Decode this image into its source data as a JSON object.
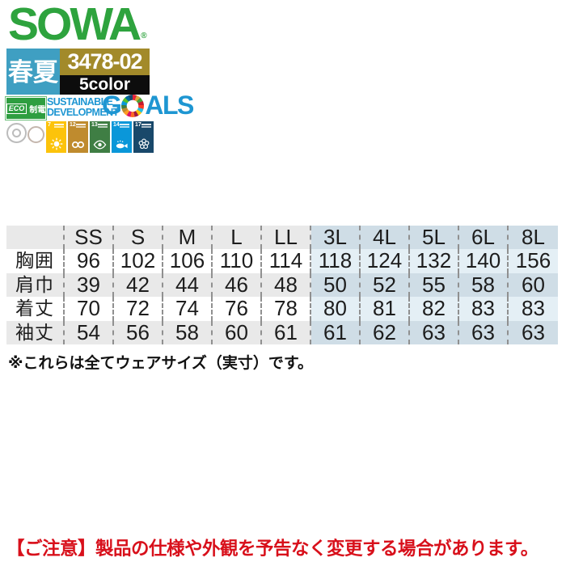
{
  "brand": {
    "logo": "SOWA",
    "registered": "®",
    "season_label": "春夏",
    "product_code": "3478-02",
    "color_count": "5color"
  },
  "badges": {
    "eco_label": "ECO",
    "antistatic_label": "制電"
  },
  "sdg": {
    "line1": "SUSTAINABLE",
    "line2": "DEVELOPMENT",
    "goals_g": "G",
    "goals_als": "ALS",
    "tiles": [
      {
        "num": "7",
        "color": "#fcc30b",
        "icon": "sun-icon"
      },
      {
        "num": "12",
        "color": "#bf8b2e",
        "icon": "infinity-icon"
      },
      {
        "num": "13",
        "color": "#3f7e44",
        "icon": "eye-icon"
      },
      {
        "num": "14",
        "color": "#0a97d9",
        "icon": "fish-icon"
      },
      {
        "num": "17",
        "color": "#19486a",
        "icon": "flower-icon"
      }
    ]
  },
  "size_table": {
    "unit_columns": [
      "SS",
      "S",
      "M",
      "L",
      "LL",
      "3L",
      "4L",
      "5L",
      "6L",
      "8L"
    ],
    "rows": [
      {
        "label": "胸囲",
        "values": [
          "96",
          "102",
          "106",
          "110",
          "114",
          "118",
          "124",
          "132",
          "140",
          "156"
        ]
      },
      {
        "label": "肩巾",
        "values": [
          "39",
          "42",
          "44",
          "46",
          "48",
          "50",
          "52",
          "55",
          "58",
          "60"
        ]
      },
      {
        "label": "着丈",
        "values": [
          "70",
          "72",
          "74",
          "76",
          "78",
          "80",
          "81",
          "82",
          "83",
          "83"
        ]
      },
      {
        "label": "袖丈",
        "values": [
          "54",
          "56",
          "58",
          "60",
          "61",
          "61",
          "62",
          "63",
          "63",
          "63"
        ]
      }
    ]
  },
  "notes": {
    "size_note": "※これらは全てウェアサイズ（実寸）です。",
    "caution": "【ご注意】製品の仕様や外観を予告なく変更する場合があります。"
  },
  "colors": {
    "brand_green": "#2ea33e",
    "season_blue": "#3f9fc2",
    "code_gold": "#a28a2a",
    "count_black": "#0d0d0d",
    "sdg_blue": "#1e96d2",
    "eco_green": "#2e9e40",
    "caution_red": "#d8101b",
    "row_gray": "#e9e9e9",
    "row_white": "#ffffff",
    "row_blue_dark": "#cfdde6",
    "row_blue_light": "#e4eff5",
    "dash_border": "#909090"
  }
}
